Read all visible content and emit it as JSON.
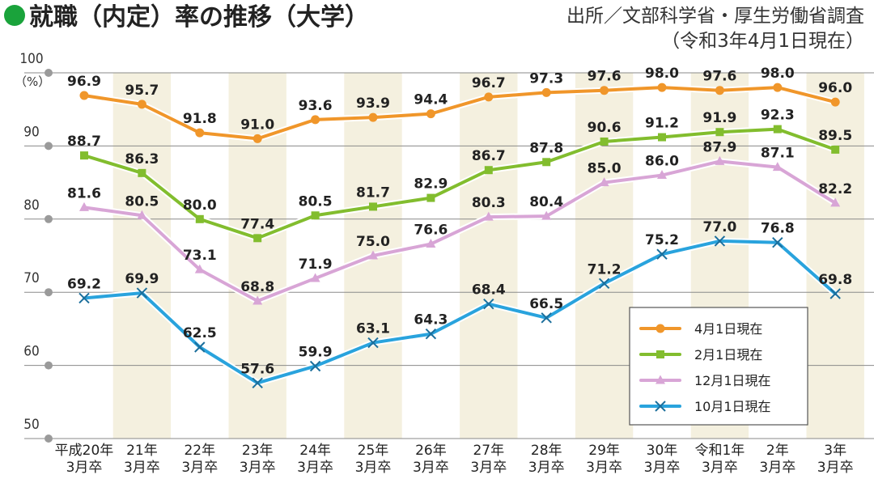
{
  "header": {
    "title": "就職（内定）率の推移（大学）",
    "source": "出所／文部科学省・厚生労働省調査",
    "note": "（令和3年4月1日現在）"
  },
  "chart_data": {
    "type": "line",
    "categories": [
      [
        "平成20年",
        "3月卒"
      ],
      [
        "21年",
        "3月卒"
      ],
      [
        "22年",
        "3月卒"
      ],
      [
        "23年",
        "3月卒"
      ],
      [
        "24年",
        "3月卒"
      ],
      [
        "25年",
        "3月卒"
      ],
      [
        "26年",
        "3月卒"
      ],
      [
        "27年",
        "3月卒"
      ],
      [
        "28年",
        "3月卒"
      ],
      [
        "29年",
        "3月卒"
      ],
      [
        "30年",
        "3月卒"
      ],
      [
        "令和1年",
        "3月卒"
      ],
      [
        "2年",
        "3月卒"
      ],
      [
        "3年",
        "3月卒"
      ]
    ],
    "ylim": [
      50,
      100
    ],
    "yticks": [
      50,
      60,
      70,
      80,
      90,
      100
    ],
    "yunit": "（%）",
    "grid": true,
    "legend_position": "bottom-right",
    "series": [
      {
        "name": "4月1日現在",
        "color": "#f0962a",
        "marker": "circle",
        "values": [
          96.9,
          95.7,
          91.8,
          91.0,
          93.6,
          93.9,
          94.4,
          96.7,
          97.3,
          97.6,
          98.0,
          97.6,
          98.0,
          96.0
        ]
      },
      {
        "name": "2月1日現在",
        "color": "#82bd2e",
        "marker": "square",
        "values": [
          88.7,
          86.3,
          80.0,
          77.4,
          80.5,
          81.7,
          82.9,
          86.7,
          87.8,
          90.6,
          91.2,
          91.9,
          92.3,
          89.5
        ]
      },
      {
        "name": "12月1日現在",
        "color": "#d8a5d6",
        "marker": "triangle",
        "values": [
          81.6,
          80.5,
          73.1,
          68.8,
          71.9,
          75.0,
          76.6,
          80.3,
          80.4,
          85.0,
          86.0,
          87.9,
          87.1,
          82.2
        ]
      },
      {
        "name": "10月1日現在",
        "color": "#29a3dd",
        "marker": "cross",
        "values": [
          69.2,
          69.9,
          62.5,
          57.6,
          59.9,
          63.1,
          64.3,
          68.4,
          66.5,
          71.2,
          75.2,
          77.0,
          76.8,
          69.8
        ]
      }
    ],
    "colors": {
      "band": "#f4f0df",
      "grid": "#8a8a8a",
      "title_dot": "#1aa33b"
    }
  }
}
